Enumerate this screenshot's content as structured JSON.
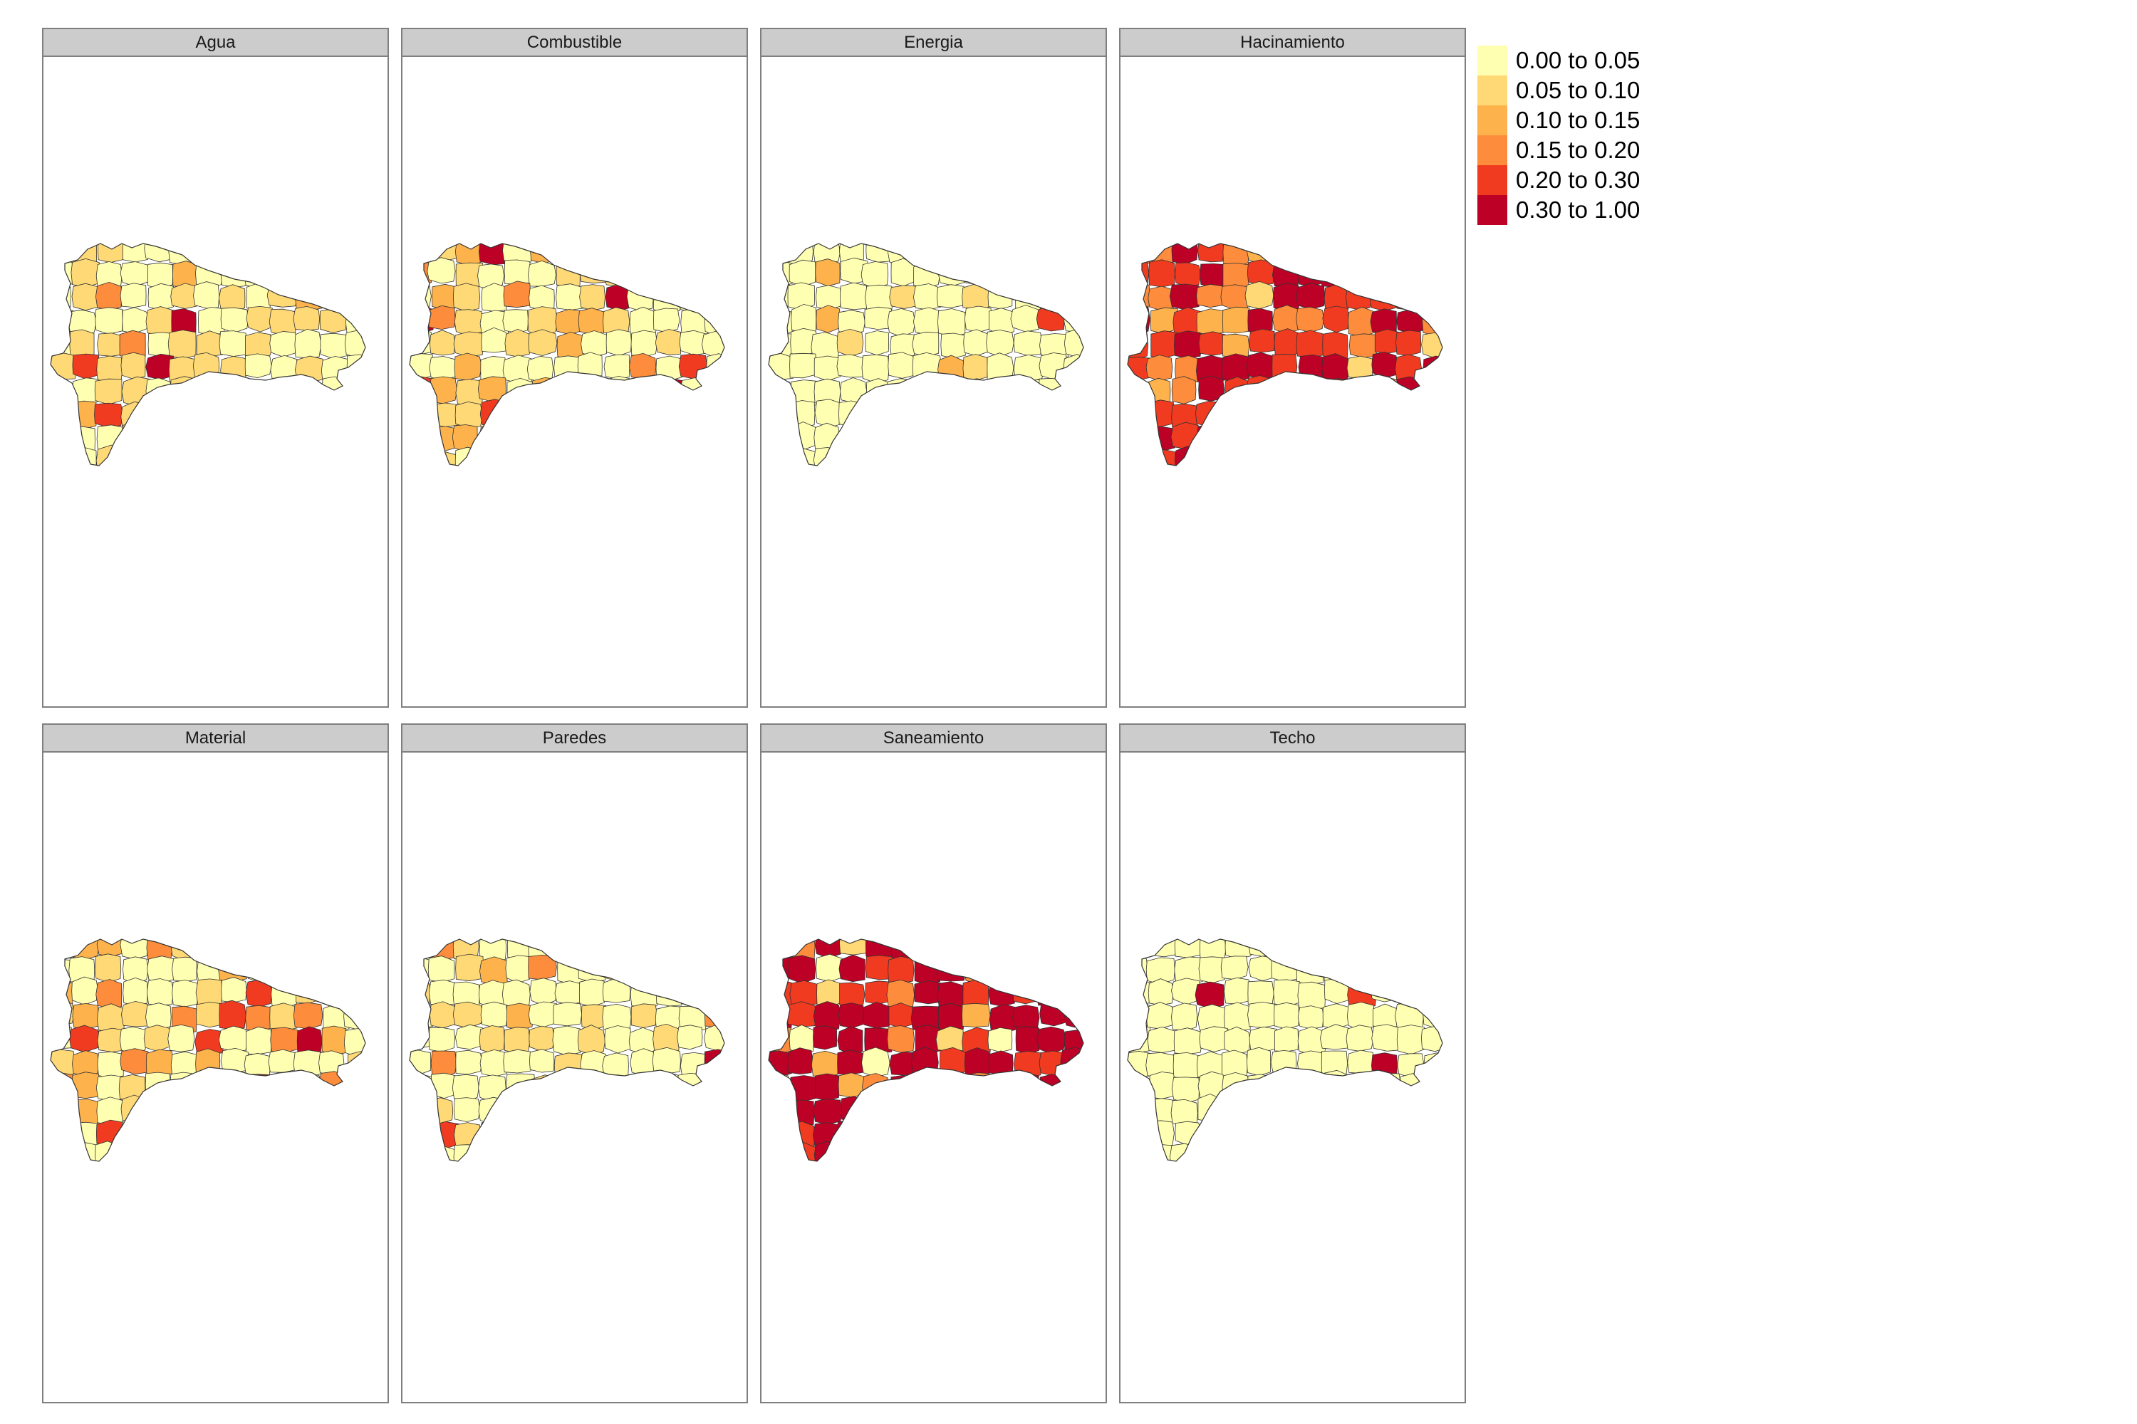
{
  "panels": [
    {
      "title": "Agua",
      "mix": [
        0.55,
        0.3,
        0.08,
        0.02,
        0.01,
        0.04
      ]
    },
    {
      "title": "Combustible",
      "mix": [
        0.45,
        0.2,
        0.15,
        0.12,
        0.03,
        0.05
      ]
    },
    {
      "title": "Energia",
      "mix": [
        0.88,
        0.05,
        0.04,
        0.01,
        0.01,
        0.01
      ]
    },
    {
      "title": "Hacinamiento",
      "mix": [
        0.0,
        0.02,
        0.1,
        0.23,
        0.4,
        0.25
      ]
    },
    {
      "title": "Material",
      "mix": [
        0.55,
        0.2,
        0.1,
        0.1,
        0.04,
        0.01
      ]
    },
    {
      "title": "Paredes",
      "mix": [
        0.6,
        0.25,
        0.08,
        0.04,
        0.02,
        0.01
      ]
    },
    {
      "title": "Saneamiento",
      "mix": [
        0.03,
        0.03,
        0.07,
        0.12,
        0.2,
        0.55
      ]
    },
    {
      "title": "Techo",
      "mix": [
        0.98,
        0.0,
        0.0,
        0.0,
        0.01,
        0.01
      ]
    }
  ],
  "legend": [
    {
      "label": "0.00 to 0.05",
      "color": "#ffffb2"
    },
    {
      "label": "0.05 to 0.10",
      "color": "#fed976"
    },
    {
      "label": "0.10 to 0.15",
      "color": "#feb24c"
    },
    {
      "label": "0.15 to 0.20",
      "color": "#fd8d3c"
    },
    {
      "label": "0.20 to 0.30",
      "color": "#f03b20"
    },
    {
      "label": "0.30 to 1.00",
      "color": "#bd0026"
    }
  ]
}
